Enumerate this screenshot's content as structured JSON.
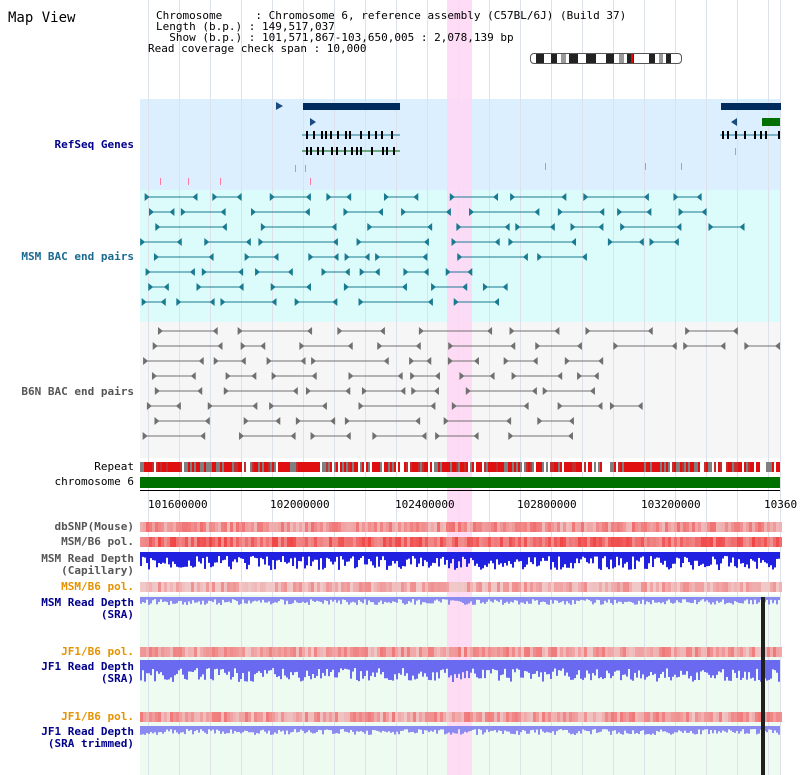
{
  "header": {
    "title": "Map View",
    "chromosome_line": "Chromosome     : Chromosome 6, reference assembly (C57BL/6J) (Build 37)",
    "length_line": "Length (b.p.) : 149,517,037",
    "show_line": "  Show (b.p.) : 101,571,867-103,650,005 : 2,078,139 bp",
    "coverage_line": "Read coverage check span : 10,000"
  },
  "tracks": {
    "refseq": "RefSeq Genes",
    "msm_bac": "MSM BAC end pairs",
    "b6n_bac": "B6N BAC end pairs",
    "repeat": "Repeat",
    "chromosome": "chromosome 6",
    "dbsnp": "dbSNP(Mouse)",
    "msm_b6_pol_1": "MSM/B6 pol.",
    "msm_depth_cap_1": "MSM Read Depth",
    "msm_depth_cap_2": "(Capillary)",
    "msm_b6_pol_2": "MSM/B6 pol.",
    "msm_depth_sra_1": "MSM Read Depth",
    "msm_depth_sra_2": "(SRA)",
    "jf1_b6_pol_1": "JF1/B6 pol.",
    "jf1_depth_sra_1": "JF1 Read Depth",
    "jf1_depth_sra_2": "(SRA)",
    "jf1_b6_pol_2": "JF1/B6 pol.",
    "jf1_depth_trim_1": "JF1 Read Depth",
    "jf1_depth_trim_2": "(SRA trimmed)"
  },
  "axis": {
    "ticks": [
      "101600000",
      "102000000",
      "102400000",
      "102800000",
      "103200000",
      "10360"
    ]
  },
  "colors": {
    "refseq_bg": "#dcefff",
    "msm_bac_bg": "#dcfcfc",
    "b6n_bg": "#f4f4f4",
    "highlight": "#ffd6f4",
    "label_blue": "#00008b",
    "label_orange": "#e69200",
    "bac_line": "#1a7a90",
    "chromosome_bar": "#007000"
  }
}
